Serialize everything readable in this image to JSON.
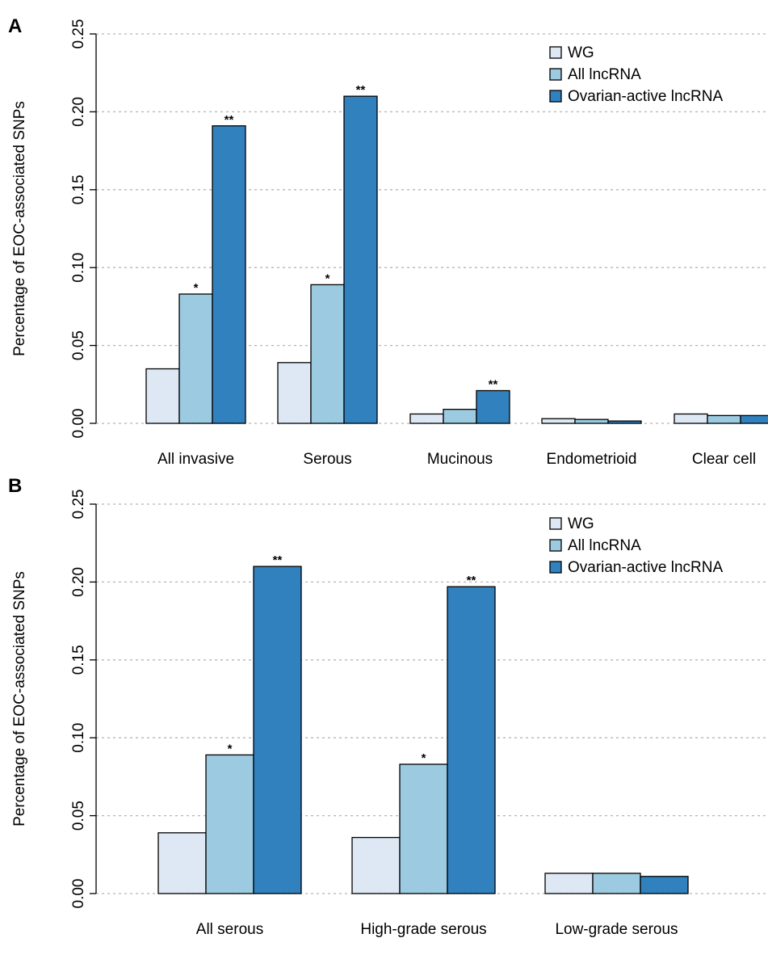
{
  "colors": {
    "WG": "#dde8f4",
    "All lncRNA": "#9ccae1",
    "Ovarian-active lncRNA": "#3181bf"
  },
  "chart_data": [
    {
      "panel": "A",
      "type": "bar",
      "ylabel": "Percentage of EOC-associated SNPs",
      "ylim": [
        0,
        0.25
      ],
      "yticks": [
        "0.00",
        "0.05",
        "0.10",
        "0.15",
        "0.20",
        "0.25"
      ],
      "grid": true,
      "legend_position": "top-right",
      "categories": [
        "All invasive",
        "Serous",
        "Mucinous",
        "Endometrioid",
        "Clear cell"
      ],
      "series": [
        {
          "name": "WG",
          "values": [
            0.035,
            0.039,
            0.006,
            0.003,
            0.006
          ]
        },
        {
          "name": "All lncRNA",
          "values": [
            0.083,
            0.089,
            0.009,
            0.0025,
            0.005
          ]
        },
        {
          "name": "Ovarian-active lncRNA",
          "values": [
            0.191,
            0.21,
            0.021,
            0.0015,
            0.005
          ]
        }
      ],
      "annotations": [
        [
          "",
          "*",
          "**"
        ],
        [
          "",
          "*",
          "**"
        ],
        [
          "",
          "",
          "**"
        ],
        [
          "",
          "",
          ""
        ],
        [
          "",
          "",
          ""
        ]
      ]
    },
    {
      "panel": "B",
      "type": "bar",
      "ylabel": "Percentage of EOC-associated SNPs",
      "ylim": [
        0,
        0.25
      ],
      "yticks": [
        "0.00",
        "0.05",
        "0.10",
        "0.15",
        "0.20",
        "0.25"
      ],
      "grid": true,
      "legend_position": "top-right",
      "categories": [
        "All serous",
        "High-grade serous",
        "Low-grade serous"
      ],
      "series": [
        {
          "name": "WG",
          "values": [
            0.039,
            0.036,
            0.013
          ]
        },
        {
          "name": "All lncRNA",
          "values": [
            0.089,
            0.083,
            0.013
          ]
        },
        {
          "name": "Ovarian-active lncRNA",
          "values": [
            0.21,
            0.197,
            0.011
          ]
        }
      ],
      "annotations": [
        [
          "",
          "*",
          "**"
        ],
        [
          "",
          "*",
          "**"
        ],
        [
          "",
          "",
          ""
        ]
      ]
    }
  ]
}
